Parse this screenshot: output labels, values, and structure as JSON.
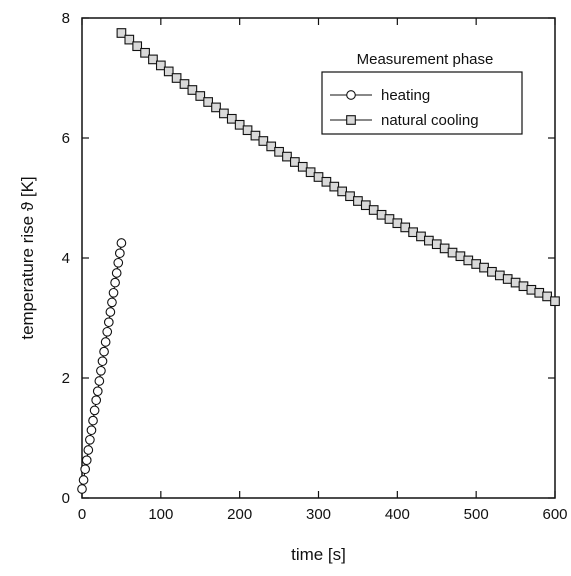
{
  "chart_data": {
    "type": "line",
    "xlabel": "time [s]",
    "ylabel": "temperature rise ϑ [K]",
    "xlim": [
      0,
      600
    ],
    "ylim": [
      0,
      8
    ],
    "xticks": [
      0,
      100,
      200,
      300,
      400,
      500,
      600
    ],
    "yticks": [
      0,
      2,
      4,
      6,
      8
    ],
    "xtick_labels": [
      "0",
      "100",
      "200",
      "300",
      "400",
      "500",
      "600"
    ],
    "ytick_labels": [
      "0",
      "2",
      "4",
      "6",
      "8"
    ],
    "grid": false,
    "legend": {
      "title": "Measurement phase",
      "position": "top-right"
    },
    "series": [
      {
        "name": "heating",
        "marker": "circle",
        "x": [
          0,
          2,
          4,
          6,
          8,
          10,
          12,
          14,
          16,
          18,
          20,
          22,
          24,
          26,
          28,
          30,
          32,
          34,
          36,
          38,
          40,
          42,
          44,
          46,
          48,
          50
        ],
        "y": [
          0.15,
          0.3,
          0.48,
          0.63,
          0.8,
          0.97,
          1.13,
          1.29,
          1.46,
          1.63,
          1.78,
          1.95,
          2.12,
          2.28,
          2.44,
          2.6,
          2.77,
          2.93,
          3.1,
          3.26,
          3.42,
          3.59,
          3.75,
          3.92,
          4.08,
          4.25
        ]
      },
      {
        "name": "natural cooling",
        "marker": "square",
        "x": [
          50,
          60,
          70,
          80,
          90,
          100,
          110,
          120,
          130,
          140,
          150,
          160,
          170,
          180,
          190,
          200,
          210,
          220,
          230,
          240,
          250,
          260,
          270,
          280,
          290,
          300,
          310,
          320,
          330,
          340,
          350,
          360,
          370,
          380,
          390,
          400,
          410,
          420,
          430,
          440,
          450,
          460,
          470,
          480,
          490,
          500,
          510,
          520,
          530,
          540,
          550,
          560,
          570,
          580,
          590,
          600
        ],
        "y": [
          7.75,
          7.64,
          7.53,
          7.42,
          7.31,
          7.21,
          7.11,
          7.0,
          6.9,
          6.8,
          6.7,
          6.6,
          6.51,
          6.41,
          6.32,
          6.22,
          6.13,
          6.04,
          5.95,
          5.86,
          5.77,
          5.69,
          5.6,
          5.52,
          5.43,
          5.35,
          5.27,
          5.19,
          5.11,
          5.03,
          4.95,
          4.88,
          4.8,
          4.72,
          4.65,
          4.58,
          4.51,
          4.43,
          4.36,
          4.29,
          4.23,
          4.16,
          4.09,
          4.03,
          3.96,
          3.9,
          3.84,
          3.77,
          3.71,
          3.65,
          3.59,
          3.53,
          3.47,
          3.42,
          3.36,
          3.28
        ]
      }
    ]
  }
}
